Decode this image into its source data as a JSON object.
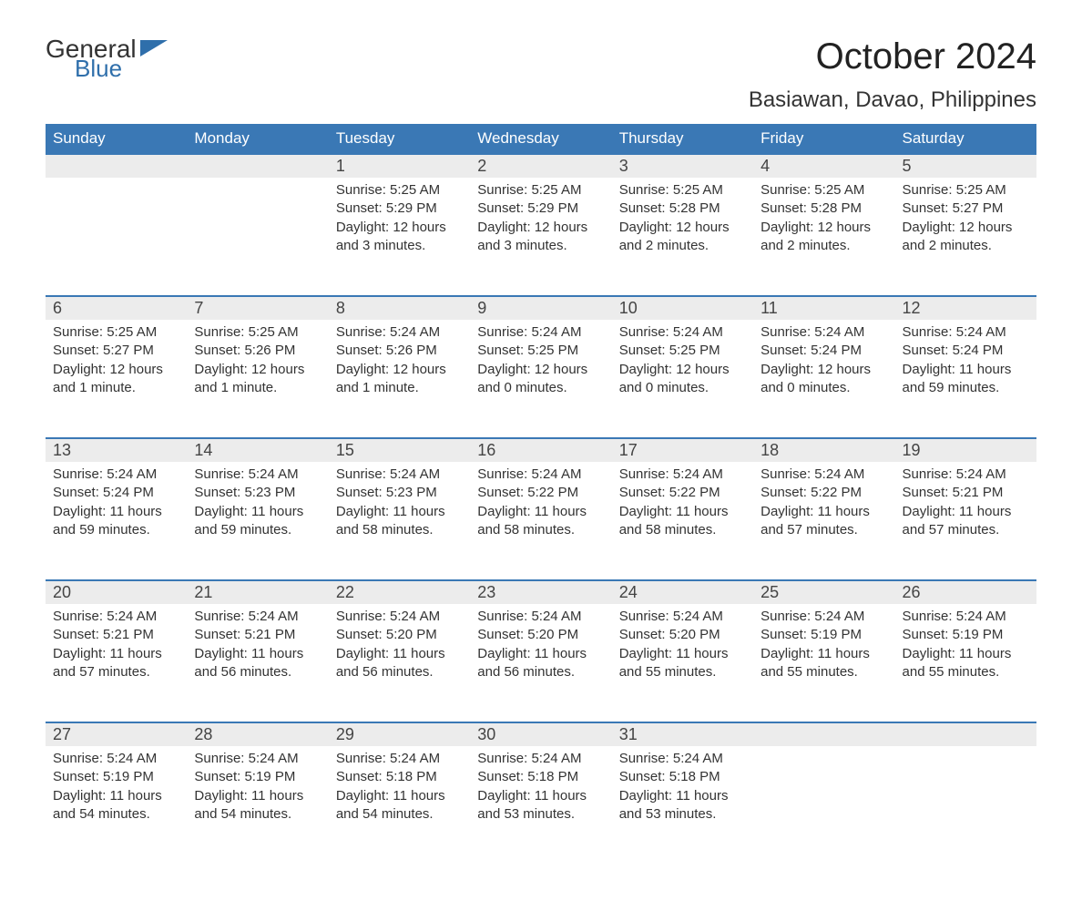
{
  "logo": {
    "part1": "General",
    "part2": "Blue"
  },
  "title": "October 2024",
  "location": "Basiawan, Davao, Philippines",
  "colors": {
    "header_bg": "#3a78b5",
    "header_text": "#ffffff",
    "daynum_bg": "#ececec",
    "row_border": "#3a78b5",
    "body_text": "#333333",
    "accent_blue": "#2f6fab",
    "background": "#ffffff"
  },
  "typography": {
    "title_fontsize": 40,
    "location_fontsize": 24,
    "dayheader_fontsize": 17,
    "daynum_fontsize": 18,
    "cell_fontsize": 15
  },
  "calendar": {
    "type": "table",
    "columns": [
      "Sunday",
      "Monday",
      "Tuesday",
      "Wednesday",
      "Thursday",
      "Friday",
      "Saturday"
    ],
    "weeks": [
      [
        null,
        null,
        {
          "n": "1",
          "sr": "5:25 AM",
          "ss": "5:29 PM",
          "dl": "12 hours and 3 minutes."
        },
        {
          "n": "2",
          "sr": "5:25 AM",
          "ss": "5:29 PM",
          "dl": "12 hours and 3 minutes."
        },
        {
          "n": "3",
          "sr": "5:25 AM",
          "ss": "5:28 PM",
          "dl": "12 hours and 2 minutes."
        },
        {
          "n": "4",
          "sr": "5:25 AM",
          "ss": "5:28 PM",
          "dl": "12 hours and 2 minutes."
        },
        {
          "n": "5",
          "sr": "5:25 AM",
          "ss": "5:27 PM",
          "dl": "12 hours and 2 minutes."
        }
      ],
      [
        {
          "n": "6",
          "sr": "5:25 AM",
          "ss": "5:27 PM",
          "dl": "12 hours and 1 minute."
        },
        {
          "n": "7",
          "sr": "5:25 AM",
          "ss": "5:26 PM",
          "dl": "12 hours and 1 minute."
        },
        {
          "n": "8",
          "sr": "5:24 AM",
          "ss": "5:26 PM",
          "dl": "12 hours and 1 minute."
        },
        {
          "n": "9",
          "sr": "5:24 AM",
          "ss": "5:25 PM",
          "dl": "12 hours and 0 minutes."
        },
        {
          "n": "10",
          "sr": "5:24 AM",
          "ss": "5:25 PM",
          "dl": "12 hours and 0 minutes."
        },
        {
          "n": "11",
          "sr": "5:24 AM",
          "ss": "5:24 PM",
          "dl": "12 hours and 0 minutes."
        },
        {
          "n": "12",
          "sr": "5:24 AM",
          "ss": "5:24 PM",
          "dl": "11 hours and 59 minutes."
        }
      ],
      [
        {
          "n": "13",
          "sr": "5:24 AM",
          "ss": "5:24 PM",
          "dl": "11 hours and 59 minutes."
        },
        {
          "n": "14",
          "sr": "5:24 AM",
          "ss": "5:23 PM",
          "dl": "11 hours and 59 minutes."
        },
        {
          "n": "15",
          "sr": "5:24 AM",
          "ss": "5:23 PM",
          "dl": "11 hours and 58 minutes."
        },
        {
          "n": "16",
          "sr": "5:24 AM",
          "ss": "5:22 PM",
          "dl": "11 hours and 58 minutes."
        },
        {
          "n": "17",
          "sr": "5:24 AM",
          "ss": "5:22 PM",
          "dl": "11 hours and 58 minutes."
        },
        {
          "n": "18",
          "sr": "5:24 AM",
          "ss": "5:22 PM",
          "dl": "11 hours and 57 minutes."
        },
        {
          "n": "19",
          "sr": "5:24 AM",
          "ss": "5:21 PM",
          "dl": "11 hours and 57 minutes."
        }
      ],
      [
        {
          "n": "20",
          "sr": "5:24 AM",
          "ss": "5:21 PM",
          "dl": "11 hours and 57 minutes."
        },
        {
          "n": "21",
          "sr": "5:24 AM",
          "ss": "5:21 PM",
          "dl": "11 hours and 56 minutes."
        },
        {
          "n": "22",
          "sr": "5:24 AM",
          "ss": "5:20 PM",
          "dl": "11 hours and 56 minutes."
        },
        {
          "n": "23",
          "sr": "5:24 AM",
          "ss": "5:20 PM",
          "dl": "11 hours and 56 minutes."
        },
        {
          "n": "24",
          "sr": "5:24 AM",
          "ss": "5:20 PM",
          "dl": "11 hours and 55 minutes."
        },
        {
          "n": "25",
          "sr": "5:24 AM",
          "ss": "5:19 PM",
          "dl": "11 hours and 55 minutes."
        },
        {
          "n": "26",
          "sr": "5:24 AM",
          "ss": "5:19 PM",
          "dl": "11 hours and 55 minutes."
        }
      ],
      [
        {
          "n": "27",
          "sr": "5:24 AM",
          "ss": "5:19 PM",
          "dl": "11 hours and 54 minutes."
        },
        {
          "n": "28",
          "sr": "5:24 AM",
          "ss": "5:19 PM",
          "dl": "11 hours and 54 minutes."
        },
        {
          "n": "29",
          "sr": "5:24 AM",
          "ss": "5:18 PM",
          "dl": "11 hours and 54 minutes."
        },
        {
          "n": "30",
          "sr": "5:24 AM",
          "ss": "5:18 PM",
          "dl": "11 hours and 53 minutes."
        },
        {
          "n": "31",
          "sr": "5:24 AM",
          "ss": "5:18 PM",
          "dl": "11 hours and 53 minutes."
        },
        null,
        null
      ]
    ],
    "labels": {
      "sunrise": "Sunrise: ",
      "sunset": "Sunset: ",
      "daylight": "Daylight: "
    }
  }
}
